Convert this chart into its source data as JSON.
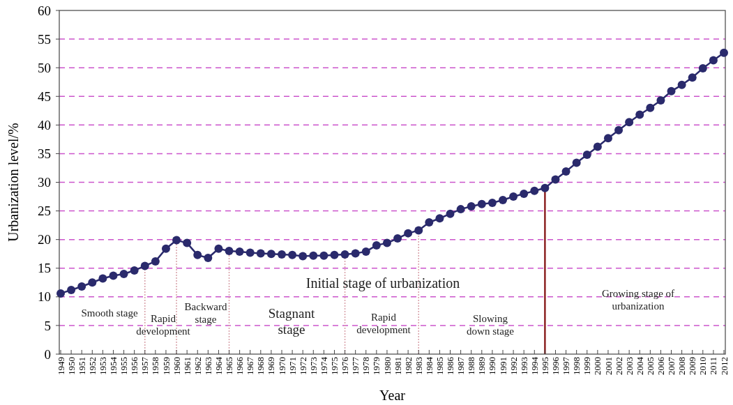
{
  "chart_data": {
    "type": "line",
    "xlabel": "Year",
    "ylabel": "Urbanization level/%",
    "x": [
      1949,
      1950,
      1951,
      1952,
      1953,
      1954,
      1955,
      1956,
      1957,
      1958,
      1959,
      1960,
      1961,
      1962,
      1963,
      1964,
      1965,
      1966,
      1967,
      1968,
      1969,
      1970,
      1971,
      1972,
      1973,
      1974,
      1975,
      1976,
      1977,
      1978,
      1979,
      1980,
      1981,
      1982,
      1983,
      1984,
      1985,
      1986,
      1987,
      1988,
      1989,
      1990,
      1991,
      1992,
      1993,
      1994,
      1995,
      1996,
      1997,
      1998,
      1999,
      2000,
      2001,
      2002,
      2003,
      2004,
      2005,
      2006,
      2007,
      2008,
      2009,
      2010,
      2011,
      2012
    ],
    "series": [
      {
        "color": "#2a2a6c",
        "values": [
          10.6,
          11.2,
          11.8,
          12.5,
          13.2,
          13.7,
          14.0,
          14.6,
          15.4,
          16.2,
          18.4,
          19.9,
          19.4,
          17.3,
          16.8,
          18.4,
          18.0,
          17.9,
          17.7,
          17.6,
          17.5,
          17.4,
          17.3,
          17.1,
          17.2,
          17.2,
          17.3,
          17.4,
          17.6,
          17.9,
          19.0,
          19.4,
          20.2,
          21.1,
          21.6,
          23.0,
          23.7,
          24.5,
          25.3,
          25.8,
          26.2,
          26.4,
          26.9,
          27.5,
          28.0,
          28.5,
          29.0,
          30.5,
          31.9,
          33.4,
          34.8,
          36.2,
          37.7,
          39.1,
          40.5,
          41.8,
          43.0,
          44.3,
          45.9,
          47.0,
          48.3,
          49.9,
          51.3,
          52.6
        ]
      }
    ],
    "xlim": [
      1949,
      2012
    ],
    "xticks": [
      1949,
      1950,
      1951,
      1952,
      1953,
      1954,
      1955,
      1956,
      1957,
      1958,
      1959,
      1960,
      1961,
      1962,
      1963,
      1964,
      1965,
      1966,
      1967,
      1968,
      1969,
      1970,
      1971,
      1972,
      1973,
      1974,
      1975,
      1976,
      1977,
      1978,
      1979,
      1980,
      1981,
      1982,
      1983,
      1984,
      1985,
      1986,
      1987,
      1988,
      1989,
      1990,
      1991,
      1992,
      1993,
      1994,
      1995,
      1996,
      1997,
      1998,
      1999,
      2000,
      2001,
      2002,
      2003,
      2004,
      2005,
      2006,
      2007,
      2008,
      2009,
      2010,
      2011,
      2012
    ],
    "ylim": [
      0,
      60
    ],
    "yticks": [
      0,
      5,
      10,
      15,
      20,
      25,
      30,
      35,
      40,
      45,
      50,
      55,
      60
    ],
    "grid": "y",
    "marker": "circle",
    "line_style": "solid",
    "ref_lines": [
      {
        "axis": "x",
        "value": 1957,
        "color": "#d8a0a8",
        "line_style": "dotted"
      },
      {
        "axis": "x",
        "value": 1960,
        "color": "#d8a0a8",
        "line_style": "dotted"
      },
      {
        "axis": "x",
        "value": 1965,
        "color": "#d8a0a8",
        "line_style": "dotted"
      },
      {
        "axis": "x",
        "value": 1976,
        "color": "#d8a0a8",
        "line_style": "dotted"
      },
      {
        "axis": "x",
        "value": 1983,
        "color": "#d8a0a8",
        "line_style": "dotted"
      },
      {
        "axis": "x",
        "value": 1995,
        "color": "#8b2020",
        "line_style": "solid"
      }
    ],
    "annotations": [
      "Smooth stage",
      "Rapid development",
      "Backward stage",
      "Stagnant stage",
      "Initial stage of urbanization",
      "Rapid development",
      "Slowing down stage",
      "Growing stage of urbanization"
    ]
  }
}
